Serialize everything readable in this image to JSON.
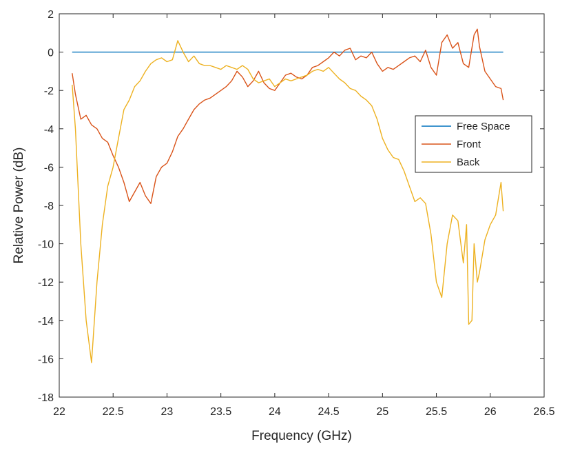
{
  "chart_data": {
    "type": "line",
    "title": "",
    "xlabel": "Frequency (GHz)",
    "ylabel": "Relative Power (dB)",
    "xlim": [
      22,
      26.5
    ],
    "ylim": [
      -18,
      2
    ],
    "xticks": [
      22,
      22.5,
      23,
      23.5,
      24,
      24.5,
      25,
      25.5,
      26,
      26.5
    ],
    "xtick_labels": [
      "22",
      "22.5",
      "23",
      "23.5",
      "24",
      "24.5",
      "25",
      "25.5",
      "26",
      "26.5"
    ],
    "yticks": [
      -18,
      -16,
      -14,
      -12,
      -10,
      -8,
      -6,
      -4,
      -2,
      0,
      2
    ],
    "ytick_labels": [
      "-18",
      "-16",
      "-14",
      "-12",
      "-10",
      "-8",
      "-6",
      "-4",
      "-2",
      "0",
      "2"
    ],
    "grid": false,
    "legend_position": "right",
    "series": [
      {
        "name": "Free Space",
        "color": "#0072BD",
        "x": [
          22.12,
          26.12
        ],
        "y": [
          0,
          0
        ]
      },
      {
        "name": "Front",
        "color": "#D95319",
        "x": [
          22.12,
          22.15,
          22.2,
          22.25,
          22.3,
          22.35,
          22.4,
          22.45,
          22.5,
          22.55,
          22.6,
          22.65,
          22.7,
          22.75,
          22.8,
          22.85,
          22.9,
          22.95,
          23.0,
          23.05,
          23.1,
          23.15,
          23.2,
          23.25,
          23.3,
          23.35,
          23.4,
          23.45,
          23.5,
          23.55,
          23.6,
          23.65,
          23.7,
          23.75,
          23.8,
          23.85,
          23.9,
          23.95,
          24.0,
          24.05,
          24.1,
          24.15,
          24.2,
          24.25,
          24.3,
          24.35,
          24.4,
          24.45,
          24.5,
          24.55,
          24.6,
          24.65,
          24.7,
          24.75,
          24.8,
          24.85,
          24.9,
          24.95,
          25.0,
          25.05,
          25.1,
          25.15,
          25.2,
          25.25,
          25.3,
          25.35,
          25.4,
          25.45,
          25.5,
          25.55,
          25.6,
          25.65,
          25.7,
          25.75,
          25.8,
          25.85,
          25.88,
          25.9,
          25.95,
          26.0,
          26.05,
          26.1,
          26.12
        ],
        "y": [
          -1.1,
          -2.2,
          -3.5,
          -3.3,
          -3.8,
          -4.0,
          -4.5,
          -4.7,
          -5.4,
          -6.0,
          -6.8,
          -7.8,
          -7.3,
          -6.8,
          -7.5,
          -7.9,
          -6.5,
          -6.0,
          -5.8,
          -5.2,
          -4.4,
          -4.0,
          -3.5,
          -3.0,
          -2.7,
          -2.5,
          -2.4,
          -2.2,
          -2.0,
          -1.8,
          -1.5,
          -1.0,
          -1.3,
          -1.8,
          -1.5,
          -1.0,
          -1.6,
          -1.9,
          -2.0,
          -1.6,
          -1.2,
          -1.1,
          -1.3,
          -1.4,
          -1.2,
          -0.8,
          -0.7,
          -0.5,
          -0.3,
          0.0,
          -0.2,
          0.1,
          0.2,
          -0.4,
          -0.2,
          -0.3,
          0.0,
          -0.6,
          -1.0,
          -0.8,
          -0.9,
          -0.7,
          -0.5,
          -0.3,
          -0.2,
          -0.5,
          0.1,
          -0.8,
          -1.2,
          0.5,
          0.9,
          0.2,
          0.5,
          -0.6,
          -0.8,
          0.9,
          1.2,
          0.3,
          -1.0,
          -1.4,
          -1.8,
          -1.9,
          -2.5
        ]
      },
      {
        "name": "Back",
        "color": "#EDB120",
        "x": [
          22.12,
          22.15,
          22.2,
          22.25,
          22.3,
          22.35,
          22.4,
          22.45,
          22.5,
          22.55,
          22.6,
          22.65,
          22.7,
          22.75,
          22.8,
          22.85,
          22.9,
          22.95,
          23.0,
          23.05,
          23.1,
          23.15,
          23.2,
          23.25,
          23.3,
          23.35,
          23.4,
          23.45,
          23.5,
          23.55,
          23.6,
          23.65,
          23.7,
          23.75,
          23.8,
          23.85,
          23.9,
          23.95,
          24.0,
          24.05,
          24.1,
          24.15,
          24.2,
          24.25,
          24.3,
          24.35,
          24.4,
          24.45,
          24.5,
          24.55,
          24.6,
          24.65,
          24.7,
          24.75,
          24.8,
          24.85,
          24.9,
          24.95,
          25.0,
          25.05,
          25.1,
          25.15,
          25.2,
          25.25,
          25.3,
          25.35,
          25.4,
          25.45,
          25.5,
          25.55,
          25.6,
          25.65,
          25.7,
          25.75,
          25.78,
          25.8,
          25.83,
          25.85,
          25.88,
          25.9,
          25.95,
          26.0,
          26.05,
          26.1,
          26.12
        ],
        "y": [
          -1.7,
          -4.0,
          -10.0,
          -14.0,
          -16.2,
          -12.0,
          -9.0,
          -7.0,
          -6.0,
          -4.5,
          -3.0,
          -2.5,
          -1.8,
          -1.5,
          -1.0,
          -0.6,
          -0.4,
          -0.3,
          -0.5,
          -0.4,
          0.6,
          0.0,
          -0.5,
          -0.2,
          -0.6,
          -0.7,
          -0.7,
          -0.8,
          -0.9,
          -0.7,
          -0.8,
          -0.9,
          -0.7,
          -0.9,
          -1.4,
          -1.6,
          -1.5,
          -1.4,
          -1.8,
          -1.6,
          -1.4,
          -1.5,
          -1.4,
          -1.3,
          -1.2,
          -1.0,
          -0.9,
          -1.0,
          -0.8,
          -1.1,
          -1.4,
          -1.6,
          -1.9,
          -2.0,
          -2.3,
          -2.5,
          -2.8,
          -3.5,
          -4.5,
          -5.1,
          -5.5,
          -5.6,
          -6.2,
          -7.0,
          -7.8,
          -7.6,
          -7.9,
          -9.5,
          -12.0,
          -12.8,
          -10.0,
          -8.5,
          -8.8,
          -11.0,
          -9.0,
          -14.2,
          -14.0,
          -10.0,
          -12.0,
          -11.5,
          -9.8,
          -9.0,
          -8.5,
          -6.8,
          -8.3
        ]
      }
    ]
  }
}
